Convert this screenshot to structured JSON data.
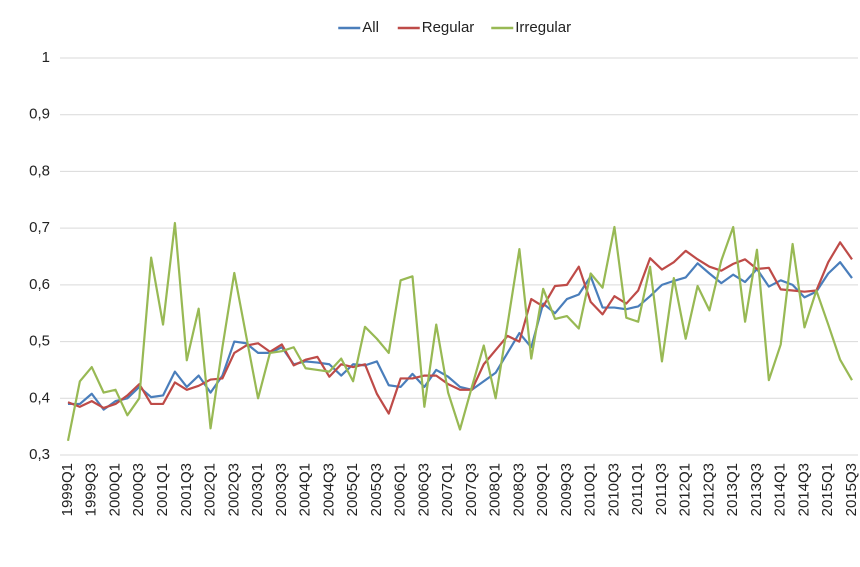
{
  "chart_data": {
    "type": "line",
    "categories": [
      "1999Q1",
      null,
      "1999Q3",
      null,
      "2000Q1",
      null,
      "2000Q3",
      null,
      "2001Q1",
      null,
      "2001Q3",
      null,
      "2002Q1",
      null,
      "2002Q3",
      null,
      "2003Q1",
      null,
      "2003Q3",
      null,
      "2004Q1",
      null,
      "2004Q3",
      null,
      "2005Q1",
      null,
      "2005Q3",
      null,
      "2006Q1",
      null,
      "2006Q3",
      null,
      "2007Q1",
      null,
      "2007Q3",
      null,
      "2008Q1",
      null,
      "2008Q3",
      null,
      "2009Q1",
      null,
      "2009Q3",
      null,
      "2010Q1",
      null,
      "2010Q3",
      null,
      "2011Q1",
      null,
      "2011Q3",
      null,
      "2012Q1",
      null,
      "2012Q3",
      null,
      "2013Q1",
      null,
      "2013Q3",
      null,
      "2014Q1",
      null,
      "2014Q3",
      null,
      "2015Q1",
      null,
      "2015Q3"
    ],
    "series": [
      {
        "name": "All",
        "color": "#4a7ebb",
        "values": [
          0.39,
          0.39,
          0.408,
          0.38,
          0.395,
          0.4,
          0.42,
          0.402,
          0.405,
          0.447,
          0.42,
          0.44,
          0.41,
          0.44,
          0.5,
          0.497,
          0.48,
          0.48,
          0.49,
          0.46,
          0.465,
          0.463,
          0.46,
          0.44,
          0.46,
          0.458,
          0.465,
          0.423,
          0.42,
          0.443,
          0.42,
          0.45,
          0.438,
          0.42,
          0.415,
          0.43,
          0.445,
          0.48,
          0.515,
          0.49,
          0.567,
          0.55,
          0.575,
          0.583,
          0.615,
          0.56,
          0.56,
          0.557,
          0.562,
          0.58,
          0.6,
          0.607,
          0.613,
          0.638,
          0.62,
          0.603,
          0.618,
          0.605,
          0.628,
          0.597,
          0.608,
          0.6,
          0.578,
          0.588,
          0.62,
          0.64,
          0.612
        ]
      },
      {
        "name": "Regular",
        "color": "#be4b48",
        "values": [
          0.393,
          0.385,
          0.395,
          0.383,
          0.39,
          0.405,
          0.425,
          0.39,
          0.39,
          0.428,
          0.415,
          0.422,
          0.433,
          0.435,
          0.48,
          0.493,
          0.497,
          0.482,
          0.495,
          0.458,
          0.468,
          0.473,
          0.438,
          0.46,
          0.455,
          0.46,
          0.408,
          0.373,
          0.435,
          0.435,
          0.44,
          0.44,
          0.425,
          0.415,
          0.415,
          0.46,
          0.485,
          0.51,
          0.5,
          0.575,
          0.562,
          0.598,
          0.6,
          0.632,
          0.57,
          0.548,
          0.58,
          0.567,
          0.59,
          0.647,
          0.627,
          0.64,
          0.66,
          0.645,
          0.632,
          0.625,
          0.637,
          0.645,
          0.628,
          0.63,
          0.592,
          0.59,
          0.588,
          0.59,
          0.64,
          0.675,
          0.645
        ]
      },
      {
        "name": "Irregular",
        "color": "#98b954",
        "values": [
          0.325,
          0.43,
          0.455,
          0.41,
          0.415,
          0.37,
          0.4,
          0.648,
          0.53,
          0.709,
          0.467,
          0.558,
          0.347,
          0.49,
          0.621,
          0.51,
          0.4,
          0.48,
          0.483,
          0.49,
          0.453,
          0.45,
          0.447,
          0.47,
          0.43,
          0.526,
          0.505,
          0.48,
          0.608,
          0.615,
          0.385,
          0.53,
          0.41,
          0.345,
          0.42,
          0.493,
          0.4,
          0.53,
          0.663,
          0.47,
          0.593,
          0.54,
          0.545,
          0.523,
          0.62,
          0.595,
          0.702,
          0.542,
          0.535,
          0.632,
          0.465,
          0.612,
          0.505,
          0.598,
          0.555,
          0.643,
          0.702,
          0.535,
          0.662,
          0.432,
          0.495,
          0.672,
          0.525,
          0.59,
          0.53,
          0.468,
          0.432
        ]
      }
    ],
    "ylim": [
      0.3,
      1
    ],
    "yticks": [
      {
        "value": 0.3,
        "label": "0,3"
      },
      {
        "value": 0.4,
        "label": "0,4"
      },
      {
        "value": 0.5,
        "label": "0,5"
      },
      {
        "value": 0.6,
        "label": "0,6"
      },
      {
        "value": 0.7,
        "label": "0,7"
      },
      {
        "value": 0.8,
        "label": "0,8"
      },
      {
        "value": 0.9,
        "label": "0,9"
      },
      1
    ],
    "grid": true,
    "legend": "top"
  }
}
